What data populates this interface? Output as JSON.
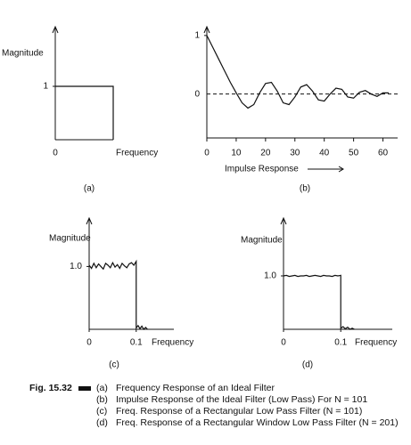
{
  "chart_data": [
    {
      "type": "line",
      "ylabel": "Magnitude",
      "xlabel": "Frequency",
      "caption": "(a)",
      "x": [
        0,
        1,
        1
      ],
      "values": [
        1,
        1,
        0
      ],
      "color": "#111111",
      "xlim": [
        0,
        1
      ],
      "ylim": [
        0,
        2
      ],
      "xticks": [
        0
      ],
      "yticks": [
        1
      ]
    },
    {
      "type": "line",
      "xlabel": "Impulse Response",
      "caption": "(b)",
      "x": [
        0,
        2,
        4,
        6,
        8,
        10,
        12,
        14,
        16,
        18,
        20,
        22,
        24,
        26,
        28,
        30,
        32,
        34,
        36,
        38,
        40,
        42,
        44,
        46,
        48,
        50,
        52,
        54,
        56,
        58,
        60,
        62
      ],
      "values": [
        1,
        0.8,
        0.6,
        0.4,
        0.2,
        0.02,
        -0.15,
        -0.24,
        -0.18,
        0.02,
        0.18,
        0.2,
        0.05,
        -0.15,
        -0.18,
        -0.05,
        0.12,
        0.16,
        0.05,
        -0.1,
        -0.12,
        0.0,
        0.1,
        0.08,
        -0.05,
        -0.07,
        0.03,
        0.06,
        0.0,
        -0.04,
        0.02,
        0.02
      ],
      "color": "#111111",
      "xlim": [
        0,
        65
      ],
      "ylim": [
        -0.75,
        1.15
      ],
      "xticks": [
        0,
        10,
        20,
        30,
        40,
        50,
        60
      ],
      "yticks": [
        1,
        0
      ]
    },
    {
      "type": "line",
      "ylabel": "Magnitude",
      "xlabel": "Frequency",
      "caption": "(c)",
      "x": [
        0,
        0.005,
        0.01,
        0.015,
        0.02,
        0.025,
        0.03,
        0.035,
        0.04,
        0.045,
        0.05,
        0.055,
        0.06,
        0.065,
        0.07,
        0.075,
        0.08,
        0.085,
        0.09,
        0.095,
        0.1,
        0.1,
        0.104,
        0.108,
        0.112,
        0.116,
        0.12,
        0.124
      ],
      "values": [
        1.02,
        0.97,
        1.05,
        0.98,
        1.04,
        1.0,
        0.96,
        1.05,
        1.02,
        0.98,
        1.06,
        0.99,
        1.03,
        0.97,
        1.05,
        1.01,
        0.98,
        1.04,
        1.06,
        1.02,
        1.08,
        0.02,
        0.06,
        0.01,
        0.05,
        0.0,
        0.03,
        0
      ],
      "color": "#111111",
      "xlim": [
        0,
        0.18
      ],
      "ylim": [
        0,
        1.7
      ],
      "xticks": [
        0,
        0.1
      ],
      "yticks": [
        {
          "value": 1,
          "label": "1.0"
        }
      ]
    },
    {
      "type": "line",
      "ylabel": "Magnitude",
      "xlabel": "Frequency",
      "caption": "(d)",
      "x": [
        0,
        0.005,
        0.01,
        0.015,
        0.02,
        0.025,
        0.03,
        0.035,
        0.04,
        0.045,
        0.05,
        0.055,
        0.06,
        0.065,
        0.07,
        0.075,
        0.08,
        0.085,
        0.09,
        0.095,
        0.1,
        0.1,
        0.104,
        0.108,
        0.112,
        0.116,
        0.12,
        0.124
      ],
      "values": [
        1.0,
        1.01,
        0.99,
        1.0,
        1.01,
        0.99,
        1.0,
        1.0,
        1.01,
        0.99,
        1.0,
        1.01,
        1.0,
        0.99,
        1.01,
        1.0,
        1.0,
        0.99,
        1.01,
        1.0,
        1.01,
        0.02,
        0.05,
        0.01,
        0.04,
        0.0,
        0.02,
        0
      ],
      "color": "#111111",
      "xlim": [
        0,
        0.19
      ],
      "ylim": [
        0,
        2
      ],
      "xticks": [
        0,
        0.1
      ],
      "yticks": [
        {
          "value": 1,
          "label": "1.0"
        }
      ]
    }
  ],
  "caption": {
    "label": "Fig. 15.32",
    "items": [
      {
        "tag": "(a)",
        "text": "Frequency Response of an Ideal Filter"
      },
      {
        "tag": "(b)",
        "text": "Impulse Response of the Ideal Filter (Low Pass) For N = 101"
      },
      {
        "tag": "(c)",
        "text": "Freq. Response of a Rectangular Low Pass Filter (N = 101)"
      },
      {
        "tag": "(d)",
        "text": "Freq. Response of a Rectangular Window Low Pass Filter (N = 201)"
      }
    ]
  }
}
